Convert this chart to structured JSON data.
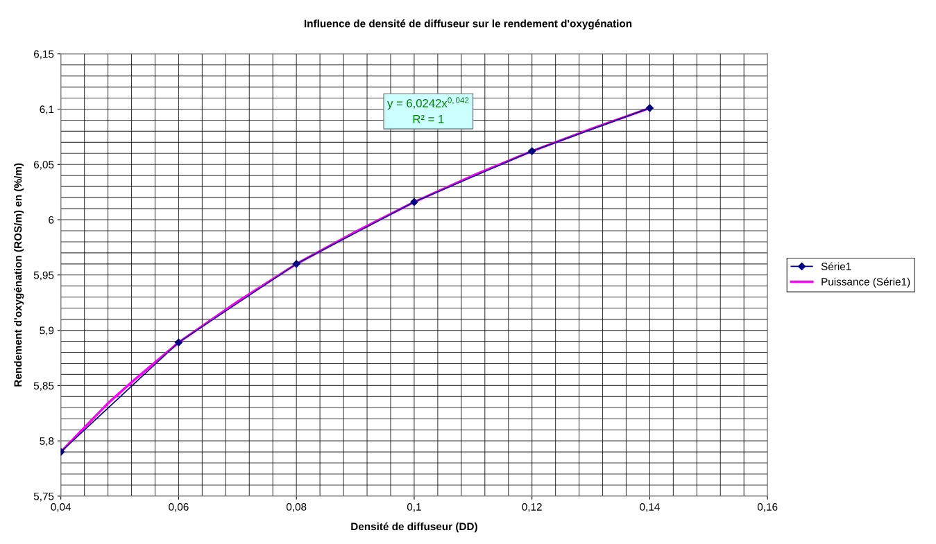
{
  "chart_data": {
    "type": "line",
    "title": "Influence de densité de diffuseur sur le rendement d'oxygénation",
    "xlabel": "Densité de diffuseur (DD)",
    "ylabel": "Rendement d'oxygénation (ROS/m) en (%/m)",
    "series": [
      {
        "name": "Série1",
        "color": "#000080",
        "marker": "diamond",
        "x": [
          0.04,
          0.06,
          0.08,
          0.1,
          0.12,
          0.14
        ],
        "values": [
          5.79,
          5.889,
          5.96,
          6.016,
          6.062,
          6.101
        ]
      },
      {
        "name": "Puissance (Série1)",
        "color": "#ff00ff",
        "marker": "none",
        "x": [
          0.04,
          0.044,
          0.048,
          0.052,
          0.056,
          0.06,
          0.07,
          0.08,
          0.09,
          0.1,
          0.11,
          0.12,
          0.13,
          0.14
        ],
        "values": [
          5.79,
          5.812,
          5.834,
          5.853,
          5.871,
          5.889,
          5.926,
          5.96,
          5.989,
          6.016,
          6.04,
          6.062,
          6.082,
          6.101
        ]
      }
    ],
    "annotations": [
      "y = 6,0242x$^{0,042}$\nR² = 1"
    ],
    "xlim": [
      0.04,
      0.16
    ],
    "ylim": [
      5.75,
      6.15
    ],
    "xticks": [
      {
        "value": 0.04,
        "label": "0,04"
      },
      {
        "value": 0.044,
        "label": null
      },
      {
        "value": 0.048,
        "label": null
      },
      {
        "value": 0.052,
        "label": null
      },
      {
        "value": 0.056,
        "label": null
      },
      {
        "value": 0.06,
        "label": "0,06"
      },
      {
        "value": 0.064,
        "label": null
      },
      {
        "value": 0.068,
        "label": null
      },
      {
        "value": 0.072,
        "label": null
      },
      {
        "value": 0.076,
        "label": null
      },
      {
        "value": 0.08,
        "label": "0,08"
      },
      {
        "value": 0.084,
        "label": null
      },
      {
        "value": 0.088,
        "label": null
      },
      {
        "value": 0.092,
        "label": null
      },
      {
        "value": 0.096,
        "label": null
      },
      {
        "value": 0.1,
        "label": "0,1"
      },
      {
        "value": 0.104,
        "label": null
      },
      {
        "value": 0.108,
        "label": null
      },
      {
        "value": 0.112,
        "label": null
      },
      {
        "value": 0.116,
        "label": null
      },
      {
        "value": 0.12,
        "label": "0,12"
      },
      {
        "value": 0.124,
        "label": null
      },
      {
        "value": 0.128,
        "label": null
      },
      {
        "value": 0.132,
        "label": null
      },
      {
        "value": 0.136,
        "label": null
      },
      {
        "value": 0.14,
        "label": "0,14"
      },
      {
        "value": 0.144,
        "label": null
      },
      {
        "value": 0.148,
        "label": null
      },
      {
        "value": 0.152,
        "label": null
      },
      {
        "value": 0.156,
        "label": null
      },
      {
        "value": 0.16,
        "label": "0,16"
      }
    ],
    "yticks": [
      {
        "value": 5.75,
        "label": "5,75"
      },
      {
        "value": 5.76,
        "label": null
      },
      {
        "value": 5.77,
        "label": null
      },
      {
        "value": 5.78,
        "label": null
      },
      {
        "value": 5.79,
        "label": null
      },
      {
        "value": 5.8,
        "label": "5,8"
      },
      {
        "value": 5.81,
        "label": null
      },
      {
        "value": 5.82,
        "label": null
      },
      {
        "value": 5.83,
        "label": null
      },
      {
        "value": 5.84,
        "label": null
      },
      {
        "value": 5.85,
        "label": "5,85"
      },
      {
        "value": 5.86,
        "label": null
      },
      {
        "value": 5.87,
        "label": null
      },
      {
        "value": 5.88,
        "label": null
      },
      {
        "value": 5.89,
        "label": null
      },
      {
        "value": 5.9,
        "label": "5,9"
      },
      {
        "value": 5.91,
        "label": null
      },
      {
        "value": 5.92,
        "label": null
      },
      {
        "value": 5.93,
        "label": null
      },
      {
        "value": 5.94,
        "label": null
      },
      {
        "value": 5.95,
        "label": "5,95"
      },
      {
        "value": 5.96,
        "label": null
      },
      {
        "value": 5.97,
        "label": null
      },
      {
        "value": 5.98,
        "label": null
      },
      {
        "value": 5.99,
        "label": null
      },
      {
        "value": 6.0,
        "label": "6"
      },
      {
        "value": 6.01,
        "label": null
      },
      {
        "value": 6.02,
        "label": null
      },
      {
        "value": 6.03,
        "label": null
      },
      {
        "value": 6.04,
        "label": null
      },
      {
        "value": 6.05,
        "label": "6,05"
      },
      {
        "value": 6.06,
        "label": null
      },
      {
        "value": 6.07,
        "label": null
      },
      {
        "value": 6.08,
        "label": null
      },
      {
        "value": 6.09,
        "label": null
      },
      {
        "value": 6.1,
        "label": "6,1"
      },
      {
        "value": 6.11,
        "label": null
      },
      {
        "value": 6.12,
        "label": null
      },
      {
        "value": 6.13,
        "label": null
      },
      {
        "value": 6.14,
        "label": null
      },
      {
        "value": 6.15,
        "label": "6,15"
      }
    ],
    "grid": true,
    "legend": "right",
    "line_style": "solid"
  }
}
